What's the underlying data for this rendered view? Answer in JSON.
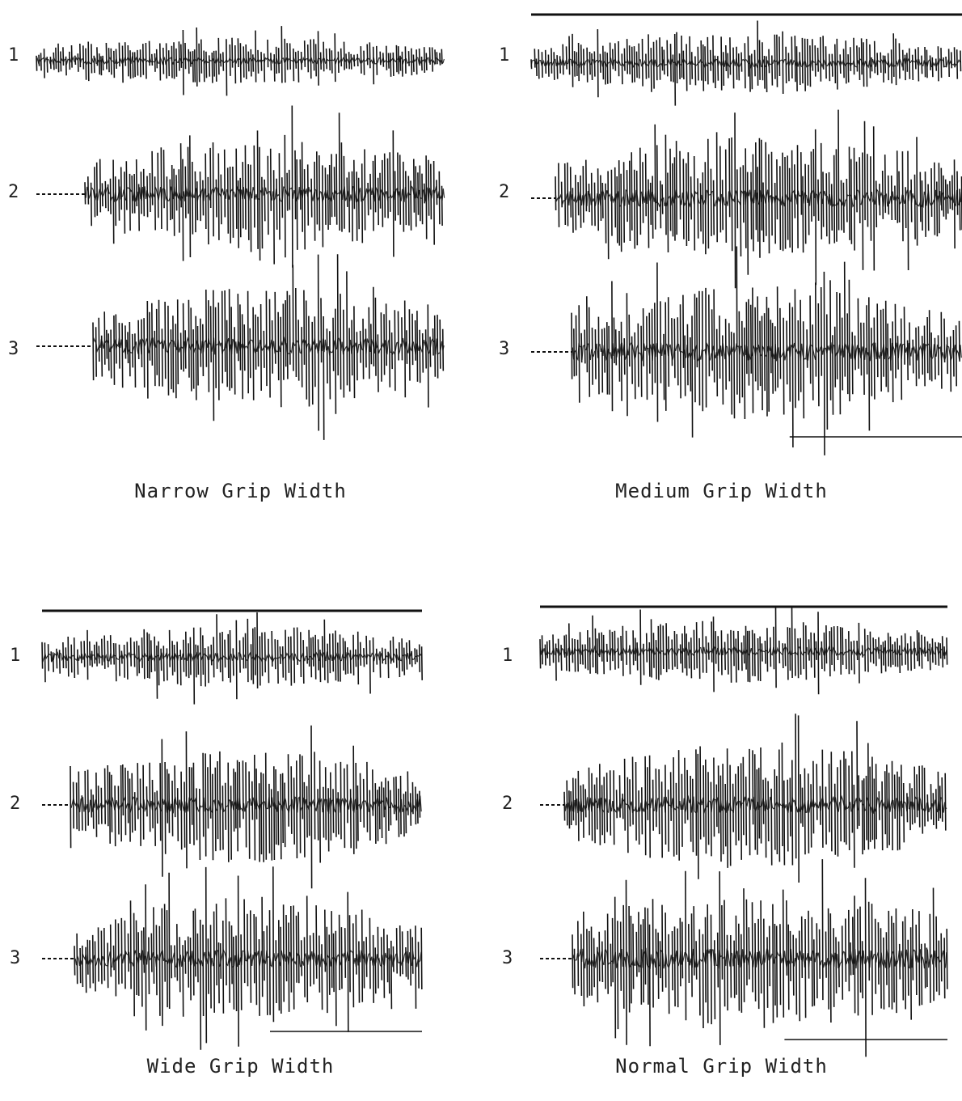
{
  "figure": {
    "panels": [
      {
        "caption": "Narrow Grip Width",
        "channels": [
          "1",
          "2",
          "3"
        ]
      },
      {
        "caption": "Medium Grip Width",
        "channels": [
          "1",
          "2",
          "3"
        ]
      },
      {
        "caption": "Wide Grip Width",
        "channels": [
          "1",
          "2",
          "3"
        ]
      },
      {
        "caption": "Normal Grip Width",
        "channels": [
          "1",
          "2",
          "3"
        ]
      }
    ]
  },
  "style": {
    "ink_color": "#111111",
    "paper_color": "#ffffff"
  }
}
